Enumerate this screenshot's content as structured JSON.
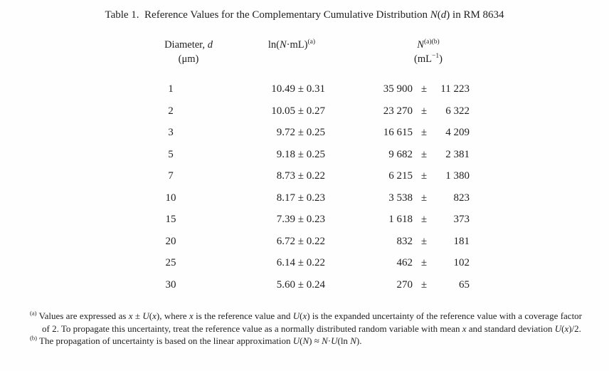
{
  "title": {
    "segments": [
      {
        "t": "Table 1.  Reference Values for the Complementary Cumulative Distribution "
      },
      {
        "t": "N",
        "i": true
      },
      {
        "t": "("
      },
      {
        "t": "d",
        "i": true
      },
      {
        "t": ") in RM 8634"
      }
    ]
  },
  "table": {
    "pm": "±",
    "headers": {
      "diameter_line1": [
        {
          "t": "Diameter, "
        },
        {
          "t": "d",
          "i": true
        }
      ],
      "diameter_line2": [
        {
          "t": "(μm)"
        }
      ],
      "ln_line1": [
        {
          "t": "ln("
        },
        {
          "t": "N",
          "i": true
        },
        {
          "t": "·mL)"
        },
        {
          "t": "(a)",
          "sup": true
        }
      ],
      "n_line1": [
        {
          "t": "N",
          "i": true
        },
        {
          "t": "(a)(b)",
          "sup": true
        }
      ],
      "n_line2": [
        {
          "t": "(mL"
        },
        {
          "t": "−1",
          "sup": true
        },
        {
          "t": ")"
        }
      ]
    },
    "rows": [
      {
        "d": "1",
        "ln": "10.49 ± 0.31",
        "n": "35 900",
        "u": "11 223"
      },
      {
        "d": "2",
        "ln": "10.05 ± 0.27",
        "n": "23 270",
        "u": "6 322"
      },
      {
        "d": "3",
        "ln": "9.72 ± 0.25",
        "n": "16 615",
        "u": "4 209"
      },
      {
        "d": "5",
        "ln": "9.18 ± 0.25",
        "n": "9 682",
        "u": "2 381"
      },
      {
        "d": "7",
        "ln": "8.73 ± 0.22",
        "n": "6 215",
        "u": "1 380"
      },
      {
        "d": "10",
        "ln": "8.17 ± 0.23",
        "n": "3 538",
        "u": "823"
      },
      {
        "d": "15",
        "ln": "7.39 ± 0.23",
        "n": "1 618",
        "u": "373"
      },
      {
        "d": "20",
        "ln": "6.72 ± 0.22",
        "n": "832",
        "u": "181"
      },
      {
        "d": "25",
        "ln": "6.14 ± 0.22",
        "n": "462",
        "u": "102"
      },
      {
        "d": "30",
        "ln": "5.60 ± 0.24",
        "n": "270",
        "u": "65"
      }
    ]
  },
  "footnotes": {
    "a": [
      {
        "t": "(a)",
        "sup": true
      },
      {
        "t": " Values are expressed as "
      },
      {
        "t": "x",
        "i": true
      },
      {
        "t": " ± "
      },
      {
        "t": "U",
        "i": true
      },
      {
        "t": "("
      },
      {
        "t": "x",
        "i": true
      },
      {
        "t": "), where "
      },
      {
        "t": "x",
        "i": true
      },
      {
        "t": " is the reference value and "
      },
      {
        "t": "U",
        "i": true
      },
      {
        "t": "("
      },
      {
        "t": "x",
        "i": true
      },
      {
        "t": ") is the expanded uncertainty of the reference value with a coverage factor of 2. To propagate this uncertainty, treat the reference value as a normally distributed random variable with mean "
      },
      {
        "t": "x",
        "i": true
      },
      {
        "t": " and standard deviation "
      },
      {
        "t": "U",
        "i": true
      },
      {
        "t": "("
      },
      {
        "t": "x",
        "i": true
      },
      {
        "t": ")/2."
      }
    ],
    "b": [
      {
        "t": "(b)",
        "sup": true
      },
      {
        "t": " The propagation of uncertainty is based on the linear approximation "
      },
      {
        "t": "U",
        "i": true
      },
      {
        "t": "("
      },
      {
        "t": "N",
        "i": true
      },
      {
        "t": ") ≈ "
      },
      {
        "t": "N",
        "i": true
      },
      {
        "t": "·"
      },
      {
        "t": "U",
        "i": true
      },
      {
        "t": "(ln "
      },
      {
        "t": "N",
        "i": true
      },
      {
        "t": ")."
      }
    ]
  }
}
